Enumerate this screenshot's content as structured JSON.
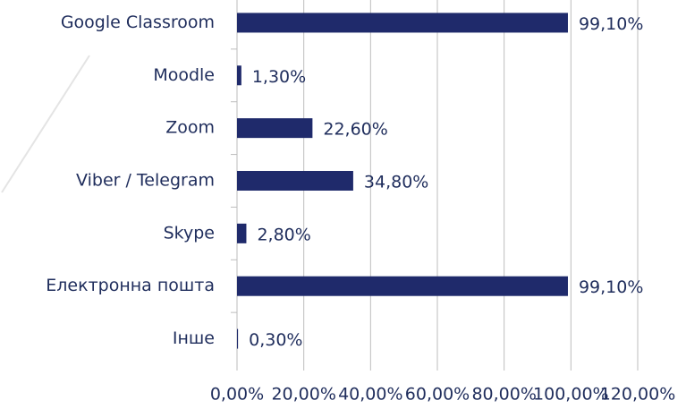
{
  "chart_data": {
    "type": "bar",
    "orientation": "horizontal",
    "categories": [
      "Google Classroom",
      "Moodle",
      "Zoom",
      "Viber / Telegram",
      "Skype",
      "Електронна пошта",
      "Інше"
    ],
    "values": [
      99.1,
      1.3,
      22.6,
      34.8,
      2.8,
      99.1,
      0.3
    ],
    "value_labels": [
      "99,10%",
      "1,30%",
      "22,60%",
      "34,80%",
      "2,80%",
      "99,10%",
      "0,30%"
    ],
    "color": "#1f2a6b",
    "xlim": [
      0,
      120
    ],
    "xticks": [
      {
        "value": 0,
        "label": "0,00%"
      },
      {
        "value": 20,
        "label": "20,00%"
      },
      {
        "value": 40,
        "label": "40,00%"
      },
      {
        "value": 60,
        "label": "60,00%"
      },
      {
        "value": 80,
        "label": "80,00%"
      },
      {
        "value": 100,
        "label": "100,00%"
      },
      {
        "value": 120,
        "label": "120,00%"
      }
    ],
    "grid": true
  }
}
